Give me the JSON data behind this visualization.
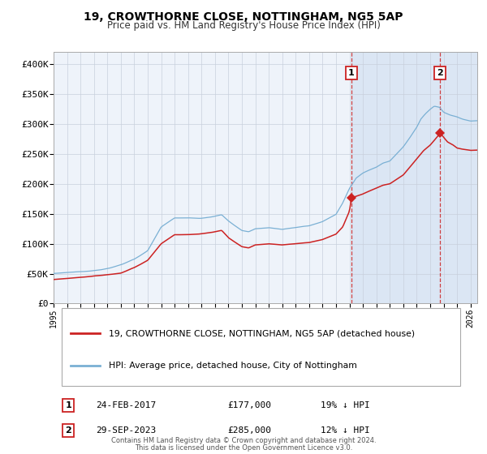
{
  "title": "19, CROWTHORNE CLOSE, NOTTINGHAM, NG5 5AP",
  "subtitle": "Price paid vs. HM Land Registry's House Price Index (HPI)",
  "xlim": [
    1995.0,
    2026.5
  ],
  "ylim": [
    0,
    420000
  ],
  "yticks": [
    0,
    50000,
    100000,
    150000,
    200000,
    250000,
    300000,
    350000,
    400000
  ],
  "ytick_labels": [
    "£0",
    "£50K",
    "£100K",
    "£150K",
    "£200K",
    "£250K",
    "£300K",
    "£350K",
    "£400K"
  ],
  "xtick_years": [
    1995,
    1996,
    1997,
    1998,
    1999,
    2000,
    2001,
    2002,
    2003,
    2004,
    2005,
    2006,
    2007,
    2008,
    2009,
    2010,
    2011,
    2012,
    2013,
    2014,
    2015,
    2016,
    2017,
    2018,
    2019,
    2020,
    2021,
    2022,
    2023,
    2024,
    2025,
    2026
  ],
  "hpi_color": "#7ab0d4",
  "price_color": "#cc2222",
  "sale1_x": 2017.14,
  "sale1_y": 177000,
  "sale1_label": "1",
  "sale1_date": "24-FEB-2017",
  "sale1_price": "£177,000",
  "sale1_hpi": "19% ↓ HPI",
  "sale2_x": 2023.75,
  "sale2_y": 285000,
  "sale2_label": "2",
  "sale2_date": "29-SEP-2023",
  "sale2_price": "£285,000",
  "sale2_hpi": "12% ↓ HPI",
  "background_color": "#ffffff",
  "plot_bg_color": "#eef3fa",
  "grid_color": "#c8d0dc",
  "shade_color": "#ccddf0",
  "legend_line1": "19, CROWTHORNE CLOSE, NOTTINGHAM, NG5 5AP (detached house)",
  "legend_line2": "HPI: Average price, detached house, City of Nottingham",
  "footnote1": "Contains HM Land Registry data © Crown copyright and database right 2024.",
  "footnote2": "This data is licensed under the Open Government Licence v3.0."
}
